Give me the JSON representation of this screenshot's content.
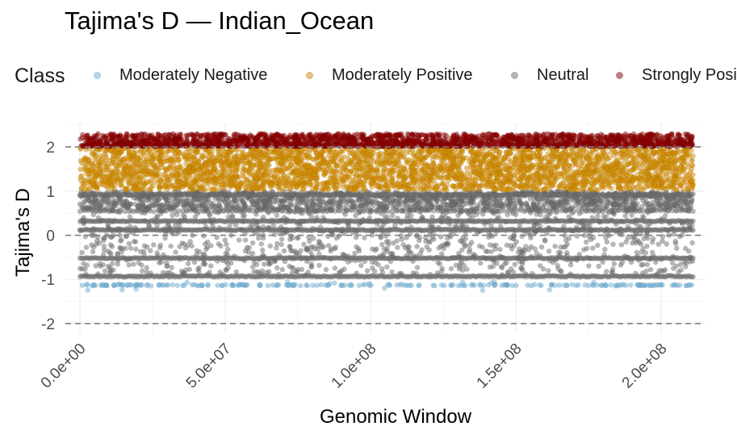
{
  "chart_data": {
    "type": "scatter",
    "title": "Tajima's D — Indian_Ocean",
    "xlabel": "Genomic Window",
    "ylabel": "Tajima's D",
    "xlim": [
      -5000000,
      215000000
    ],
    "ylim": [
      -2.22,
      2.55
    ],
    "x_ticks": [
      0,
      50000000,
      100000000,
      150000000,
      200000000
    ],
    "x_tick_labels": [
      "0.0e+00",
      "5.0e+07",
      "1.0e+08",
      "1.5e+08",
      "2.0e+08"
    ],
    "y_ticks": [
      -2,
      -1,
      0,
      1,
      2
    ],
    "y_tick_labels": [
      "-2",
      "-1",
      "0",
      "1",
      "2"
    ],
    "reference_lines": [
      -2,
      0,
      2
    ],
    "grid": true,
    "legend": {
      "title": "Class",
      "placement": "top",
      "entries": [
        "Moderately Negative",
        "Moderately Positive",
        "Neutral",
        "Strongly Positive"
      ]
    },
    "x_range": [
      0,
      211000000
    ],
    "series": [
      {
        "name": "Moderately Negative",
        "color": "#6baed6",
        "y_range": [
          -1.25,
          -1.03
        ],
        "typical_y": -1.13,
        "density": "sparse"
      },
      {
        "name": "Moderately Positive",
        "color": "#d18b00",
        "y_range": [
          1.0,
          2.0
        ],
        "density": "dense"
      },
      {
        "name": "Neutral",
        "color": "#6e6e6e",
        "y_range": [
          -0.95,
          1.0
        ],
        "bands": [
          -0.93,
          -0.52,
          0.12,
          0.32,
          0.55,
          0.92
        ],
        "density": "dense"
      },
      {
        "name": "Strongly Positive",
        "color": "#8b0000",
        "y_range": [
          2.0,
          2.35
        ],
        "density": "dense"
      }
    ]
  }
}
